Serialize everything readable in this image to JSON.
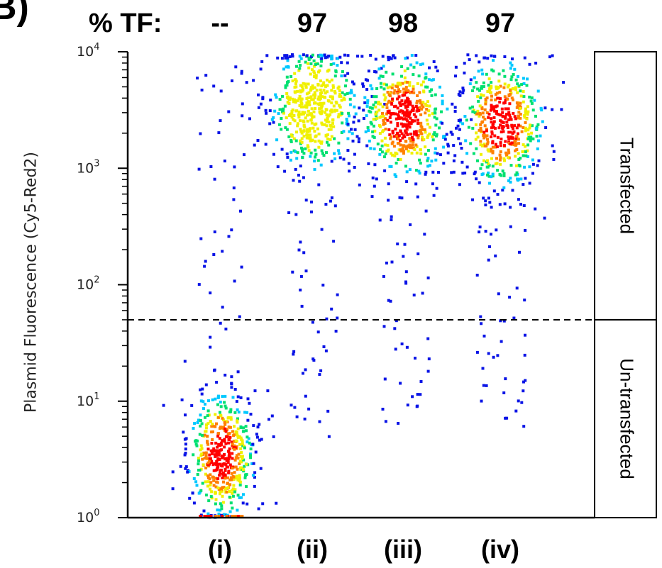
{
  "panel_letter": "B)",
  "tf_label": "% TF:",
  "chart_data": {
    "type": "scatter",
    "subtype": "flow-cytometry density dot plot",
    "ylabel": "Plasmid Fluorescence (Cy5-Red2)",
    "yscale": "log",
    "ylim": [
      1,
      10000
    ],
    "y_ticks": [
      {
        "base": "10",
        "exp": "0",
        "value": 1
      },
      {
        "base": "10",
        "exp": "1",
        "value": 10
      },
      {
        "base": "10",
        "exp": "2",
        "value": 100
      },
      {
        "base": "10",
        "exp": "3",
        "value": 1000
      },
      {
        "base": "10",
        "exp": "4",
        "value": 10000
      }
    ],
    "gate_threshold": 50,
    "gate_regions": {
      "upper": "Transfected",
      "lower": "Un-transfected"
    },
    "color_scale": [
      "#0a14e6",
      "#00c8ff",
      "#00e070",
      "#f0f000",
      "#ff8000",
      "#ff0000"
    ],
    "series": [
      {
        "label": "(i)",
        "tf": "--",
        "median": 3.5,
        "spread_decades": 0.28,
        "peak_density_color": "#ff0000"
      },
      {
        "label": "(ii)",
        "tf": "97",
        "median": 3500,
        "spread_decades": 0.27,
        "peak_density_color": "#f0f000"
      },
      {
        "label": "(iii)",
        "tf": "98",
        "median": 2800,
        "spread_decades": 0.27,
        "peak_density_color": "#ff4000"
      },
      {
        "label": "(iv)",
        "tf": "97",
        "median": 2500,
        "spread_decades": 0.28,
        "peak_density_color": "#ff0000"
      }
    ],
    "grid": false,
    "legend": "none"
  }
}
